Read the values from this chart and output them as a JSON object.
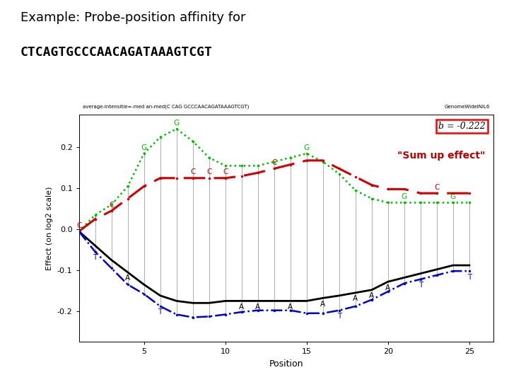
{
  "title_line1": "Example: Probe-position affinity for",
  "title_line2": "CTCAGTGCCCAACAGATAAAGTCGT",
  "subtitle_left": "average-intensitie=-med an-med(C CAG GCCCAACAGATAAAGTCGT)",
  "subtitle_right": "GenomeWideINIL6",
  "annotation_box": "b = -0.222",
  "annotation_text": "\"Sum up effect\"",
  "xlabel": "Position",
  "ylabel": "Effect (on log2 scale)",
  "xlim": [
    1,
    26.5
  ],
  "ylim": [
    -0.275,
    0.28
  ],
  "yticks": [
    -0.2,
    -0.1,
    0.0,
    0.1,
    0.2
  ],
  "xticks": [
    5,
    10,
    15,
    20,
    25
  ],
  "x_positions": [
    1,
    2,
    3,
    4,
    5,
    6,
    7,
    8,
    9,
    10,
    11,
    12,
    13,
    14,
    15,
    16,
    17,
    18,
    19,
    20,
    21,
    22,
    23,
    24,
    25
  ],
  "sequence": [
    "C",
    "T",
    "C",
    "A",
    "G",
    "T",
    "G",
    "C",
    "C",
    "C",
    "A",
    "A",
    "C",
    "A",
    "G",
    "A",
    "T",
    "A",
    "A",
    "A",
    "G",
    "T",
    "C",
    "G",
    "T"
  ],
  "green_y": [
    -0.005,
    0.035,
    0.06,
    0.105,
    0.185,
    0.225,
    0.245,
    0.215,
    0.175,
    0.155,
    0.155,
    0.155,
    0.165,
    0.175,
    0.185,
    0.165,
    0.135,
    0.095,
    0.075,
    0.065,
    0.065,
    0.065,
    0.065,
    0.065,
    0.065
  ],
  "red_y": [
    -0.005,
    0.025,
    0.045,
    0.075,
    0.105,
    0.125,
    0.125,
    0.125,
    0.125,
    0.125,
    0.13,
    0.138,
    0.148,
    0.158,
    0.168,
    0.168,
    0.148,
    0.128,
    0.108,
    0.098,
    0.098,
    0.088,
    0.088,
    0.088,
    0.088
  ],
  "black_y": [
    -0.005,
    -0.04,
    -0.075,
    -0.105,
    -0.135,
    -0.162,
    -0.175,
    -0.18,
    -0.18,
    -0.175,
    -0.175,
    -0.175,
    -0.175,
    -0.175,
    -0.175,
    -0.168,
    -0.162,
    -0.155,
    -0.148,
    -0.128,
    -0.118,
    -0.108,
    -0.098,
    -0.088,
    -0.088
  ],
  "blue_y": [
    -0.005,
    -0.055,
    -0.095,
    -0.135,
    -0.158,
    -0.188,
    -0.208,
    -0.215,
    -0.213,
    -0.208,
    -0.202,
    -0.198,
    -0.198,
    -0.198,
    -0.205,
    -0.205,
    -0.198,
    -0.188,
    -0.172,
    -0.152,
    -0.132,
    -0.122,
    -0.112,
    -0.102,
    -0.102
  ],
  "green_color": "#00BB00",
  "red_color": "#CC0000",
  "black_color": "#000000",
  "blue_color": "#0000CC",
  "gray_color": "#999999",
  "bg_color": "#FFFFFF",
  "inner_bg": "#FFFFFF"
}
